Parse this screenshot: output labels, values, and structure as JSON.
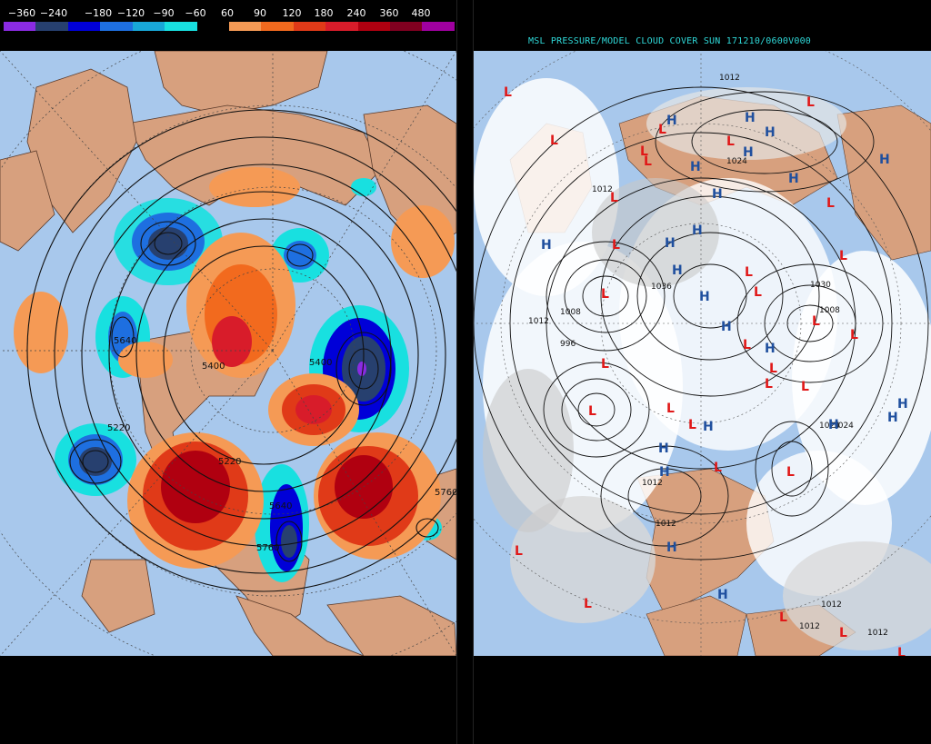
{
  "left_legend": {
    "labels": [
      "−360",
      "−240",
      "−180",
      "−120",
      "−90",
      "−60",
      "60",
      "90",
      "120",
      "180",
      "240",
      "360",
      "480"
    ],
    "colors": [
      "#8a2be2",
      "#27406f",
      "#0000d8",
      "#1e6fe0",
      "#18a7d8",
      "#18e0e0",
      "#000000",
      "#f59a55",
      "#f26a1e",
      "#e03a18",
      "#d81c2a",
      "#b00010",
      "#800020",
      "#a000a0"
    ]
  },
  "left_map": {
    "contour_labels": [
      "5640",
      "5220",
      "5400",
      "5400",
      "5640",
      "5760",
      "5760",
      "5220"
    ],
    "colors": {
      "ocean": "#a8c8ec",
      "land": "#d7a07e",
      "contour": "#111111"
    }
  },
  "right_panel": {
    "title": "MSL PRESSURE/MODEL CLOUD COVER SUN 171210/0600V000",
    "high_symbol": "H",
    "low_symbol": "L",
    "pressure_labels": [
      "1012",
      "1024",
      "1024",
      "1012",
      "1036",
      "1008",
      "996",
      "1012",
      "1030",
      "1008",
      "1012",
      "1012",
      "1024",
      "1012",
      "1012",
      "1012"
    ],
    "colors": {
      "high": "#1f4f9e",
      "low": "#e01818",
      "cloud": "#ffffff",
      "ocean": "#a8c8ec",
      "land": "#d7a07e",
      "title": "#2fd8d8"
    }
  }
}
